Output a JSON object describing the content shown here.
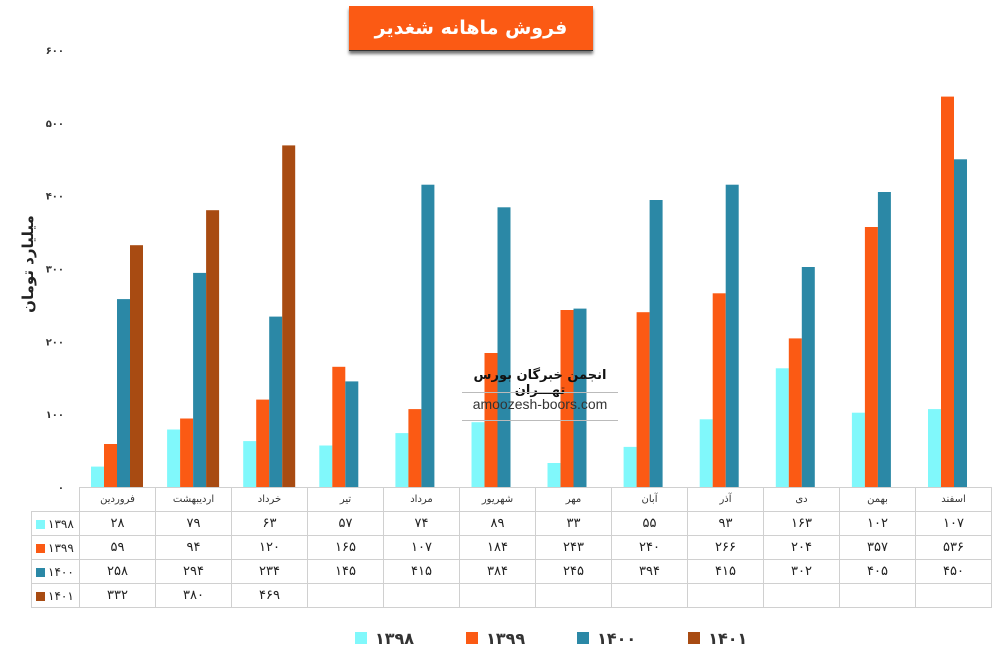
{
  "title": "فروش ماهانه شغدیر",
  "watermark": {
    "title": "انجمن خبرگان بورس تهـــران",
    "url": "amoozesh-boors.com"
  },
  "colors": {
    "1398": "#80f8fb",
    "1399": "#fb5a14",
    "1400": "#2b88a6",
    "1401": "#a84b12",
    "title_bg": "#fb5a14"
  },
  "chart_data": {
    "type": "bar",
    "title": "فروش ماهانه شغدیر",
    "ylabel": "میلیارد تومان",
    "ylim": [
      0,
      600
    ],
    "yticks": [
      "۰",
      "۱۰۰",
      "۲۰۰",
      "۳۰۰",
      "۴۰۰",
      "۵۰۰",
      "۶۰۰"
    ],
    "grid": false,
    "legend_position": "bottom",
    "categories": [
      "فروردین",
      "اردیبهشت",
      "خرداد",
      "تیر",
      "مرداد",
      "شهریور",
      "مهر",
      "آبان",
      "آذر",
      "دی",
      "بهمن",
      "اسفند"
    ],
    "series": [
      {
        "name": "۱۳۹۸",
        "key": "1398",
        "values": [
          28,
          79,
          63,
          57,
          74,
          89,
          33,
          55,
          93,
          163,
          102,
          107
        ],
        "labels": [
          "۲۸",
          "۷۹",
          "۶۳",
          "۵۷",
          "۷۴",
          "۸۹",
          "۳۳",
          "۵۵",
          "۹۳",
          "۱۶۳",
          "۱۰۲",
          "۱۰۷"
        ]
      },
      {
        "name": "۱۳۹۹",
        "key": "1399",
        "values": [
          59,
          94,
          120,
          165,
          107,
          184,
          243,
          240,
          266,
          204,
          357,
          536
        ],
        "labels": [
          "۵۹",
          "۹۴",
          "۱۲۰",
          "۱۶۵",
          "۱۰۷",
          "۱۸۴",
          "۲۴۳",
          "۲۴۰",
          "۲۶۶",
          "۲۰۴",
          "۳۵۷",
          "۵۳۶"
        ]
      },
      {
        "name": "۱۴۰۰",
        "key": "1400",
        "values": [
          258,
          294,
          234,
          145,
          415,
          384,
          245,
          394,
          415,
          302,
          405,
          450
        ],
        "labels": [
          "۲۵۸",
          "۲۹۴",
          "۲۳۴",
          "۱۴۵",
          "۴۱۵",
          "۳۸۴",
          "۲۴۵",
          "۳۹۴",
          "۴۱۵",
          "۳۰۲",
          "۴۰۵",
          "۴۵۰"
        ]
      },
      {
        "name": "۱۴۰۱",
        "key": "1401",
        "values": [
          332,
          380,
          469,
          null,
          null,
          null,
          null,
          null,
          null,
          null,
          null,
          null
        ],
        "labels": [
          "۳۳۲",
          "۳۸۰",
          "۴۶۹",
          "",
          "",
          "",
          "",
          "",
          "",
          "",
          "",
          ""
        ]
      }
    ]
  }
}
